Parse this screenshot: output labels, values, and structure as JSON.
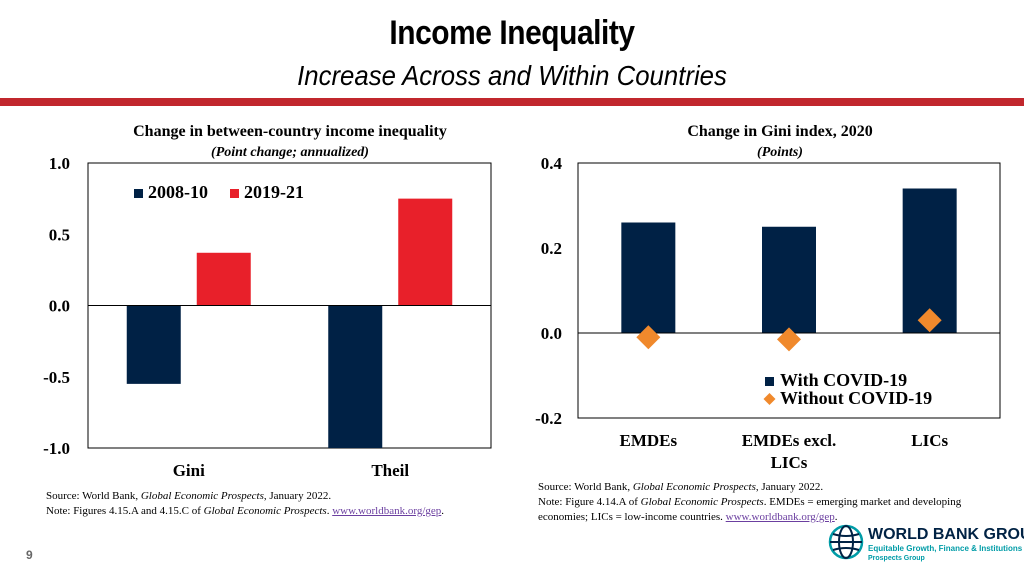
{
  "slide": {
    "title": "Income Inequality",
    "subtitle": "Increase Across and Within Countries",
    "page_number": "9",
    "accent_color": "#c1272d"
  },
  "left_source": {
    "line1_prefix": "Source: World Bank, ",
    "line1_italic": "Global Economic Prospects",
    "line1_suffix": ", January 2022.",
    "line2_prefix": "Note: Figures 4.15.A and 4.15.C  of ",
    "line2_italic": "Global Economic Prospects",
    "line2_suffix": ". ",
    "link": "www.worldbank.org/gep",
    "line2_end": "."
  },
  "right_source": {
    "line1_prefix": "Source: World Bank, ",
    "line1_italic": "Global Economic Prospects",
    "line1_suffix": ", January 2022.",
    "line2_prefix": "Note: Figure 4.14.A  of ",
    "line2_italic": "Global Economic Prospects",
    "line2_suffix": ". EMDEs  = emerging market and developing",
    "line3": "economies; LICs = low-income countries. ",
    "link": "www.worldbank.org/gep",
    "line3_end": "."
  },
  "logo": {
    "name": "WORLD BANK GROUP",
    "line2": "Equitable Growth, Finance & Institutions",
    "line3": "Prospects Group"
  },
  "chart_data": [
    {
      "type": "bar",
      "title": "Change in between-country income inequality",
      "subtitle": "(Point change; annualized)",
      "categories": [
        "Gini",
        "Theil"
      ],
      "series": [
        {
          "name": "2008-10",
          "color": "#002145",
          "values": [
            -0.55,
            -1.0
          ]
        },
        {
          "name": "2019-21",
          "color": "#e8202a",
          "values": [
            0.37,
            0.75
          ]
        }
      ],
      "yticks": [
        "1.0",
        "0.5",
        "0.0",
        "-0.5",
        "-1.0"
      ],
      "ylim": [
        -1.0,
        1.0
      ],
      "legend": "top-left"
    },
    {
      "type": "bar",
      "title": "Change in Gini index, 2020",
      "subtitle": "(Points)",
      "categories": [
        "EMDEs",
        "EMDEs excl. LICs",
        "LICs"
      ],
      "series": [
        {
          "name": "With COVID-19",
          "color": "#002145",
          "marker": "bar",
          "values": [
            0.26,
            0.25,
            0.34
          ]
        },
        {
          "name": "Without COVID-19",
          "color": "#f0892c",
          "marker": "diamond",
          "values": [
            -0.01,
            -0.015,
            0.03
          ]
        }
      ],
      "yticks": [
        "0.4",
        "0.2",
        "0.0",
        "-0.2"
      ],
      "ylim": [
        -0.2,
        0.4
      ],
      "legend": "bottom-right"
    }
  ]
}
